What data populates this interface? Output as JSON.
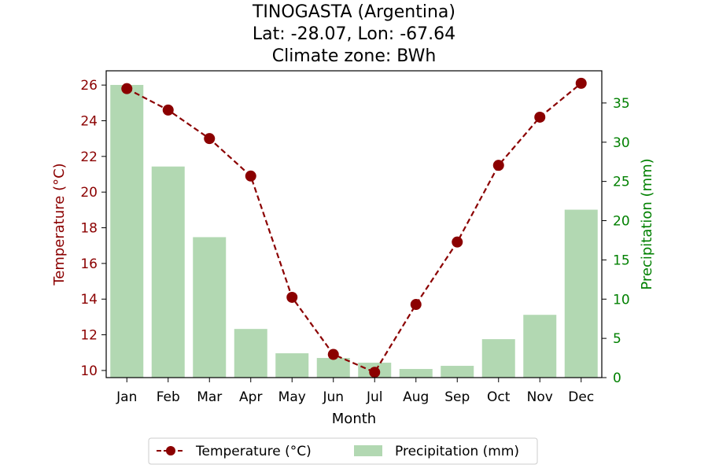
{
  "chart_data": {
    "type": "bar",
    "title": [
      "TINOGASTA (Argentina)",
      "Lat: -28.07, Lon: -67.64",
      "Climate zone: BWh"
    ],
    "xlabel": "Month",
    "ylabel_left": "Temperature (°C)",
    "ylabel_right": "Precipitation (mm)",
    "categories": [
      "Jan",
      "Feb",
      "Mar",
      "Apr",
      "May",
      "Jun",
      "Jul",
      "Aug",
      "Sep",
      "Oct",
      "Nov",
      "Dec"
    ],
    "ylim_left": [
      9.6,
      26.8
    ],
    "ylim_right": [
      0,
      39.1
    ],
    "yticks_left": [
      10,
      12,
      14,
      16,
      18,
      20,
      22,
      24,
      26
    ],
    "yticks_right": [
      0,
      5,
      10,
      15,
      20,
      25,
      30,
      35
    ],
    "series": [
      {
        "name": "Temperature (°C)",
        "kind": "line",
        "axis": "left",
        "color": "#8b0000",
        "style": "dashed, circle markers",
        "values": [
          25.8,
          24.6,
          23.0,
          20.9,
          14.1,
          10.9,
          9.9,
          13.7,
          17.2,
          21.5,
          24.2,
          26.1
        ]
      },
      {
        "name": "Precipitation (mm)",
        "kind": "bar",
        "axis": "right",
        "color": "#b2d8b2",
        "values": [
          37.3,
          26.9,
          17.9,
          6.2,
          3.1,
          2.5,
          1.9,
          1.1,
          1.5,
          4.9,
          8.0,
          21.4
        ]
      }
    ],
    "left_axis_color": "#8b0000",
    "right_axis_color": "#008000",
    "legend_position": "bottom-center",
    "grid": false
  }
}
